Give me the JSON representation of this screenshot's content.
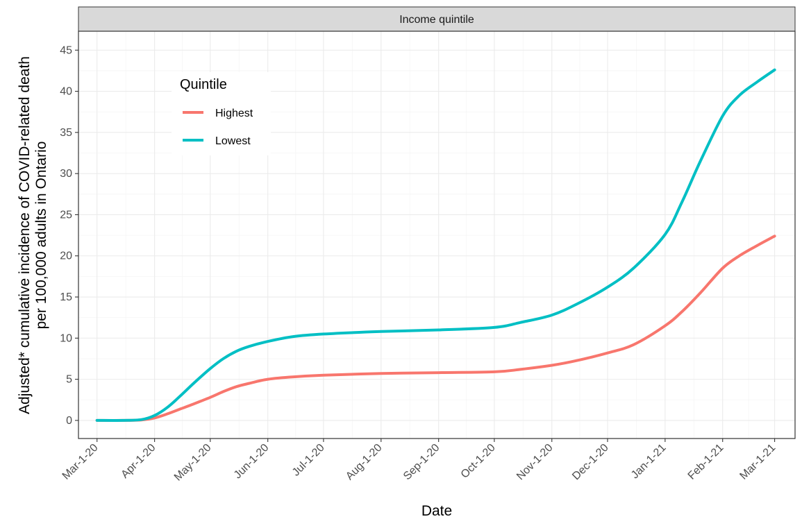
{
  "chart_data": {
    "type": "line",
    "facet_title": "Income quintile",
    "xlabel": "Date",
    "ylabel_lines": [
      "Adjusted* cumulative incidence of COVID-related death",
      "per 100,000 adults in Ontario"
    ],
    "x_ticks": [
      "Mar-1-20",
      "Apr-1-20",
      "May-1-20",
      "Jun-1-20",
      "Jul-1-20",
      "Aug-1-20",
      "Sep-1-20",
      "Oct-1-20",
      "Nov-1-20",
      "Dec-1-20",
      "Jan-1-21",
      "Feb-1-21",
      "Mar-1-21"
    ],
    "y_ticks": [
      "0",
      "5",
      "10",
      "15",
      "20",
      "25",
      "30",
      "35",
      "40",
      "45"
    ],
    "xlim": [
      "2020-02-20",
      "2021-03-12"
    ],
    "ylim": [
      -2.2,
      47.3
    ],
    "grid": true,
    "legend": {
      "title": "Quintile",
      "position": "top-left"
    },
    "series": [
      {
        "name": "Highest",
        "color": "#F8766D",
        "points": [
          [
            "2020-03-01",
            0.0
          ],
          [
            "2020-03-15",
            0.0
          ],
          [
            "2020-03-25",
            0.05
          ],
          [
            "2020-04-01",
            0.3
          ],
          [
            "2020-04-08",
            0.8
          ],
          [
            "2020-04-15",
            1.4
          ],
          [
            "2020-04-22",
            2.0
          ],
          [
            "2020-05-01",
            2.8
          ],
          [
            "2020-05-08",
            3.5
          ],
          [
            "2020-05-15",
            4.1
          ],
          [
            "2020-05-22",
            4.5
          ],
          [
            "2020-06-01",
            5.0
          ],
          [
            "2020-06-15",
            5.3
          ],
          [
            "2020-07-01",
            5.5
          ],
          [
            "2020-08-01",
            5.7
          ],
          [
            "2020-09-01",
            5.8
          ],
          [
            "2020-10-01",
            5.9
          ],
          [
            "2020-10-15",
            6.2
          ],
          [
            "2020-11-01",
            6.7
          ],
          [
            "2020-11-15",
            7.3
          ],
          [
            "2020-12-01",
            8.2
          ],
          [
            "2020-12-15",
            9.2
          ],
          [
            "2021-01-01",
            11.5
          ],
          [
            "2021-01-10",
            13.2
          ],
          [
            "2021-01-20",
            15.5
          ],
          [
            "2021-02-01",
            18.5
          ],
          [
            "2021-02-10",
            20.0
          ],
          [
            "2021-02-20",
            21.3
          ],
          [
            "2021-03-01",
            22.4
          ]
        ]
      },
      {
        "name": "Lowest",
        "color": "#00BFC4",
        "points": [
          [
            "2020-03-01",
            0.0
          ],
          [
            "2020-03-15",
            0.0
          ],
          [
            "2020-03-25",
            0.1
          ],
          [
            "2020-04-01",
            0.6
          ],
          [
            "2020-04-08",
            1.6
          ],
          [
            "2020-04-15",
            3.0
          ],
          [
            "2020-04-22",
            4.5
          ],
          [
            "2020-05-01",
            6.3
          ],
          [
            "2020-05-08",
            7.5
          ],
          [
            "2020-05-15",
            8.4
          ],
          [
            "2020-05-22",
            9.0
          ],
          [
            "2020-06-01",
            9.6
          ],
          [
            "2020-06-15",
            10.2
          ],
          [
            "2020-07-01",
            10.5
          ],
          [
            "2020-08-01",
            10.8
          ],
          [
            "2020-09-01",
            11.0
          ],
          [
            "2020-10-01",
            11.3
          ],
          [
            "2020-10-15",
            11.9
          ],
          [
            "2020-11-01",
            12.8
          ],
          [
            "2020-11-15",
            14.2
          ],
          [
            "2020-12-01",
            16.2
          ],
          [
            "2020-12-15",
            18.5
          ],
          [
            "2021-01-01",
            22.6
          ],
          [
            "2021-01-10",
            26.5
          ],
          [
            "2021-01-20",
            31.5
          ],
          [
            "2021-02-01",
            37.0
          ],
          [
            "2021-02-10",
            39.5
          ],
          [
            "2021-02-20",
            41.2
          ],
          [
            "2021-03-01",
            42.6
          ]
        ]
      }
    ]
  }
}
